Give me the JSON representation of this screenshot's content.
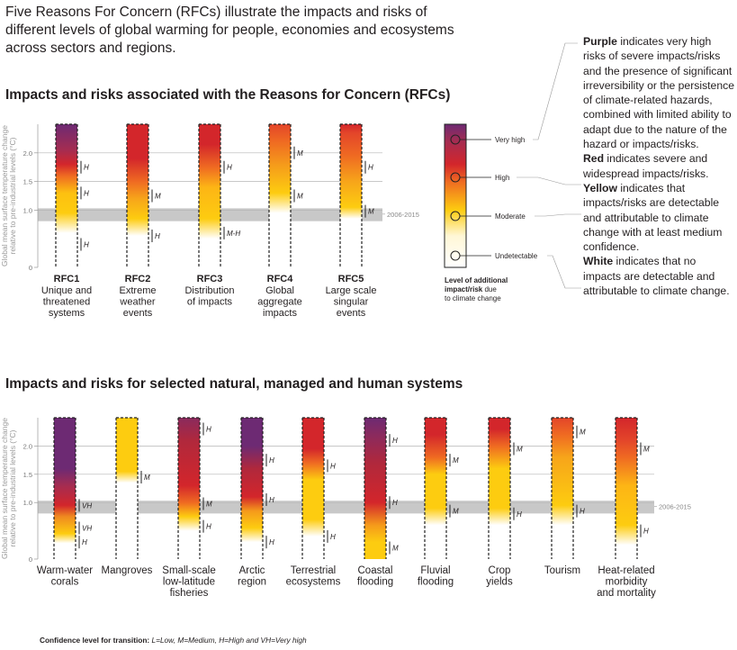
{
  "intro": {
    "line1": "Five Reasons For Concern (RFCs) illustrate the impacts and risks of",
    "line2": "different levels of global warming for people, economies and ecosystems",
    "line3": "across sectors and regions."
  },
  "section1_title": "Impacts and risks associated with the Reasons for Concern (RFCs)",
  "section2_title": "Impacts and risks for selected natural, managed and human systems",
  "footnote": {
    "prefix": "Confidence level  for transition: ",
    "text": "L=Low, M=Medium, H=High and VH=Very high"
  },
  "notes": [
    {
      "bold": "Purple",
      "text": " indicates very high risks of severe impacts/risks and the presence of significant irreversibility or the persistence of climate-related hazards, combined with limited ability to adapt due to the nature of the hazard or impacts/risks."
    },
    {
      "bold": "Red",
      "text": " indicates severe and widespread impacts/risks."
    },
    {
      "bold": "Yellow",
      "text": " indicates that impacts/risks are detectable and attributable to climate change with at least medium confidence."
    },
    {
      "bold": "White",
      "text": " indicates that no impacts are detectable and attributable to climate change."
    }
  ],
  "colors": {
    "purple": "#6d2a73",
    "red": "#d3262b",
    "orange": "#ef6a22",
    "yellow": "#fdcc10",
    "white": "#ffffff",
    "band": "#c8c8c8"
  },
  "legend": {
    "levels": [
      "Very high",
      "High",
      "Moderate",
      "Undetectable"
    ],
    "title_line1": "Level of additional",
    "title_line2": "impact/risk",
    "title_suffix": " due",
    "title_line3": "to climate change"
  },
  "chart_data": [
    {
      "type": "bar",
      "title": "Impacts and risks associated with the Reasons for Concern (RFCs)",
      "ylabel": "Global mean surface temperature change relative to pre-industrial levels (°C)",
      "ylabel_line1": "Global mean surface temperature change",
      "ylabel_line2": "relative to pre-industrial levels (°C)",
      "ylim": [
        0,
        2.5
      ],
      "y_ticks": [
        "0",
        "1.0",
        "1.5",
        "2.0"
      ],
      "reference_period": "2006-2015",
      "reference_range": [
        0.87,
        1.0
      ],
      "categories": [
        {
          "id": "RFC1",
          "name": [
            "Unique and",
            "threatened",
            "systems"
          ],
          "transitions": [
            {
              "t": 0.4,
              "c": "H"
            },
            {
              "t": 1.3,
              "c": "H"
            },
            {
              "t": 1.75,
              "c": "H"
            }
          ],
          "stops": [
            [
              0,
              "#ffffff"
            ],
            [
              0.6,
              "#ffffff"
            ],
            [
              0.95,
              "#fdcc10"
            ],
            [
              1.3,
              "#fdc010"
            ],
            [
              1.6,
              "#ef6a22"
            ],
            [
              1.8,
              "#d3262b"
            ],
            [
              2.05,
              "#a52c51"
            ],
            [
              2.5,
              "#6d2a73"
            ]
          ]
        },
        {
          "id": "RFC2",
          "name": [
            "Extreme",
            "weather",
            "events"
          ],
          "transitions": [
            {
              "t": 0.55,
              "c": "H"
            },
            {
              "t": 1.25,
              "c": "M"
            }
          ],
          "stops": [
            [
              0,
              "#ffffff"
            ],
            [
              0.55,
              "#ffffff"
            ],
            [
              0.85,
              "#fdcc10"
            ],
            [
              1.2,
              "#f7a51a"
            ],
            [
              1.5,
              "#ef6a22"
            ],
            [
              1.9,
              "#d3262b"
            ],
            [
              2.5,
              "#d3262b"
            ]
          ]
        },
        {
          "id": "RFC3",
          "name": [
            "Distribution",
            "of impacts"
          ],
          "transitions": [
            {
              "t": 0.6,
              "c": "M-H"
            },
            {
              "t": 1.75,
              "c": "H"
            }
          ],
          "stops": [
            [
              0,
              "#ffffff"
            ],
            [
              0.5,
              "#ffffff"
            ],
            [
              0.85,
              "#fdcc10"
            ],
            [
              1.4,
              "#fdb515"
            ],
            [
              1.75,
              "#ef6a22"
            ],
            [
              2.15,
              "#d3262b"
            ],
            [
              2.5,
              "#d3262b"
            ]
          ]
        },
        {
          "id": "RFC4",
          "name": [
            "Global",
            "aggregate",
            "impacts"
          ],
          "transitions": [
            {
              "t": 1.25,
              "c": "M"
            },
            {
              "t": 2.0,
              "c": "M"
            }
          ],
          "stops": [
            [
              0,
              "#ffffff"
            ],
            [
              0.95,
              "#ffffff"
            ],
            [
              1.3,
              "#fdcc10"
            ],
            [
              1.8,
              "#f59a1b"
            ],
            [
              2.2,
              "#ef6a22"
            ],
            [
              2.5,
              "#e3452a"
            ]
          ]
        },
        {
          "id": "RFC5",
          "name": [
            "Large scale",
            "singular",
            "events"
          ],
          "transitions": [
            {
              "t": 0.98,
              "c": "M"
            },
            {
              "t": 1.75,
              "c": "H"
            }
          ],
          "stops": [
            [
              0,
              "#ffffff"
            ],
            [
              0.85,
              "#ffffff"
            ],
            [
              1.05,
              "#fdcc10"
            ],
            [
              1.5,
              "#f7a51a"
            ],
            [
              1.95,
              "#ef6a22"
            ],
            [
              2.35,
              "#e3452a"
            ],
            [
              2.5,
              "#d3262b"
            ]
          ]
        }
      ]
    },
    {
      "type": "bar",
      "title": "Impacts and risks for selected natural, managed and human systems",
      "ylabel": "Global mean surface temperature change relative to pre-industrial levels (°C)",
      "ylabel_line1": "Global mean surface temperature change",
      "ylabel_line2": "relative to pre-industrial levels (°C)",
      "ylim": [
        0,
        2.5
      ],
      "y_ticks": [
        "0",
        "1.0",
        "1.5",
        "2.0"
      ],
      "reference_period": "2006-2015",
      "reference_range": [
        0.87,
        1.0
      ],
      "categories": [
        {
          "name": [
            "Warm-water",
            "corals"
          ],
          "transitions": [
            {
              "t": 0.3,
              "c": "H"
            },
            {
              "t": 0.55,
              "c": "VH"
            },
            {
              "t": 0.95,
              "c": "VH"
            }
          ],
          "stops": [
            [
              0,
              "#ffffff"
            ],
            [
              0.28,
              "#ffffff"
            ],
            [
              0.45,
              "#fdcc10"
            ],
            [
              0.75,
              "#ef8a20"
            ],
            [
              0.95,
              "#d3262b"
            ],
            [
              1.3,
              "#a52c51"
            ],
            [
              1.6,
              "#6d2a73"
            ],
            [
              2.5,
              "#6d2a73"
            ]
          ]
        },
        {
          "name": [
            "Mangroves"
          ],
          "transitions": [
            {
              "t": 1.45,
              "c": "M"
            }
          ],
          "stops": [
            [
              0,
              "#ffffff"
            ],
            [
              1.35,
              "#ffffff"
            ],
            [
              1.55,
              "#fdcc10"
            ],
            [
              2.5,
              "#fdcc10"
            ]
          ]
        },
        {
          "name": [
            "Small-scale",
            "low-latitude",
            "fisheries"
          ],
          "transitions": [
            {
              "t": 0.58,
              "c": "H"
            },
            {
              "t": 0.98,
              "c": "M"
            },
            {
              "t": 2.3,
              "c": "H"
            }
          ],
          "stops": [
            [
              0,
              "#ffffff"
            ],
            [
              0.5,
              "#ffffff"
            ],
            [
              0.75,
              "#fdcc10"
            ],
            [
              1.0,
              "#ef6a22"
            ],
            [
              1.3,
              "#d3262b"
            ],
            [
              2.1,
              "#b0283c"
            ],
            [
              2.5,
              "#8a2a5e"
            ]
          ]
        },
        {
          "name": [
            "Arctic",
            "region"
          ],
          "transitions": [
            {
              "t": 0.3,
              "c": "H"
            },
            {
              "t": 1.05,
              "c": "H"
            },
            {
              "t": 1.75,
              "c": "H"
            }
          ],
          "stops": [
            [
              0,
              "#ffffff"
            ],
            [
              0.3,
              "#ffffff"
            ],
            [
              0.55,
              "#fdcc10"
            ],
            [
              0.85,
              "#f59a1b"
            ],
            [
              1.1,
              "#d3262b"
            ],
            [
              1.6,
              "#b0283c"
            ],
            [
              2.0,
              "#6d2a73"
            ],
            [
              2.5,
              "#6d2a73"
            ]
          ]
        },
        {
          "name": [
            "Terrestrial",
            "ecosystems"
          ],
          "transitions": [
            {
              "t": 0.4,
              "c": "H"
            },
            {
              "t": 1.65,
              "c": "H"
            }
          ],
          "stops": [
            [
              0,
              "#ffffff"
            ],
            [
              0.4,
              "#ffffff"
            ],
            [
              0.7,
              "#fdcc10"
            ],
            [
              1.4,
              "#fdcc10"
            ],
            [
              1.7,
              "#ef6a22"
            ],
            [
              1.95,
              "#d3262b"
            ],
            [
              2.5,
              "#d3262b"
            ]
          ]
        },
        {
          "name": [
            "Coastal",
            "flooding"
          ],
          "transitions": [
            {
              "t": 0.2,
              "c": "M"
            },
            {
              "t": 1.0,
              "c": "H"
            },
            {
              "t": 2.1,
              "c": "H"
            }
          ],
          "stops": [
            [
              0,
              "#fdcc10"
            ],
            [
              0.3,
              "#fdcc10"
            ],
            [
              0.6,
              "#f59a1b"
            ],
            [
              1.0,
              "#d3262b"
            ],
            [
              1.7,
              "#b0283c"
            ],
            [
              2.2,
              "#8a2a5e"
            ],
            [
              2.5,
              "#6d2a73"
            ]
          ]
        },
        {
          "name": [
            "Fluvial",
            "flooding"
          ],
          "transitions": [
            {
              "t": 0.85,
              "c": "M"
            },
            {
              "t": 1.75,
              "c": "M"
            }
          ],
          "stops": [
            [
              0,
              "#ffffff"
            ],
            [
              0.6,
              "#ffffff"
            ],
            [
              0.9,
              "#fdcc10"
            ],
            [
              1.5,
              "#fdcc10"
            ],
            [
              1.8,
              "#ef6a22"
            ],
            [
              2.2,
              "#d3262b"
            ],
            [
              2.5,
              "#d3262b"
            ]
          ]
        },
        {
          "name": [
            "Crop",
            "yields"
          ],
          "transitions": [
            {
              "t": 0.8,
              "c": "H"
            },
            {
              "t": 1.95,
              "c": "M"
            }
          ],
          "stops": [
            [
              0,
              "#ffffff"
            ],
            [
              0.6,
              "#ffffff"
            ],
            [
              0.9,
              "#fdcc10"
            ],
            [
              1.6,
              "#fdcc10"
            ],
            [
              2.0,
              "#ef6a22"
            ],
            [
              2.3,
              "#d3262b"
            ],
            [
              2.5,
              "#d3262b"
            ]
          ]
        },
        {
          "name": [
            "Tourism"
          ],
          "transitions": [
            {
              "t": 0.85,
              "c": "H"
            },
            {
              "t": 2.25,
              "c": "M"
            }
          ],
          "stops": [
            [
              0,
              "#ffffff"
            ],
            [
              0.6,
              "#ffffff"
            ],
            [
              0.95,
              "#fdcc10"
            ],
            [
              1.8,
              "#f7a51a"
            ],
            [
              2.2,
              "#ef6a22"
            ],
            [
              2.5,
              "#e3452a"
            ]
          ]
        },
        {
          "name": [
            "Heat-related",
            "morbidity",
            "and mortality"
          ],
          "transitions": [
            {
              "t": 0.5,
              "c": "H"
            },
            {
              "t": 1.95,
              "c": "M"
            }
          ],
          "stops": [
            [
              0,
              "#ffffff"
            ],
            [
              0.25,
              "#ffffff"
            ],
            [
              0.6,
              "#fdcc10"
            ],
            [
              1.3,
              "#fdb515"
            ],
            [
              1.8,
              "#ef6a22"
            ],
            [
              2.1,
              "#e3452a"
            ],
            [
              2.5,
              "#d3262b"
            ]
          ]
        }
      ]
    }
  ]
}
